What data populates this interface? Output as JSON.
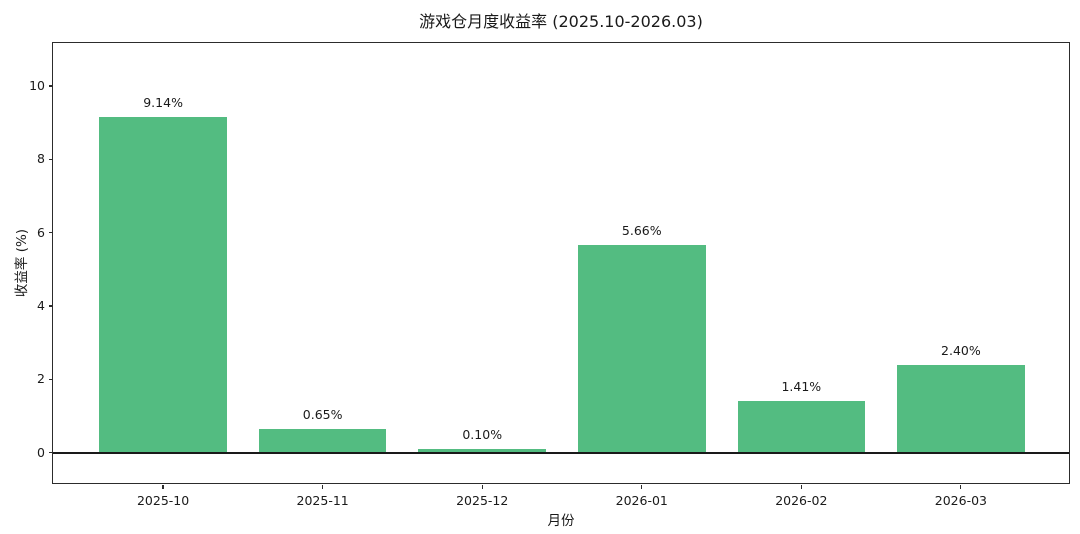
{
  "chart_data": {
    "type": "bar",
    "title": "游戏仓月度收益率 (2025.10-2026.03)",
    "xlabel": "月份",
    "ylabel": "收益率 (%)",
    "categories": [
      "2025-10",
      "2025-11",
      "2025-12",
      "2026-01",
      "2026-02",
      "2026-03"
    ],
    "values": [
      9.14,
      0.65,
      0.1,
      5.66,
      1.41,
      2.4
    ],
    "bar_labels": [
      "9.14%",
      "0.65%",
      "0.10%",
      "5.66%",
      "1.41%",
      "2.40%"
    ],
    "yticks": [
      0,
      2,
      4,
      6,
      8,
      10
    ],
    "ylim": [
      -0.88,
      11.17
    ],
    "bar_color": "#53bc81",
    "axis_color": "#2c2c2c",
    "text_color": "#1a1a1a",
    "zero_line": true,
    "grid": false,
    "legend_position": "none"
  }
}
